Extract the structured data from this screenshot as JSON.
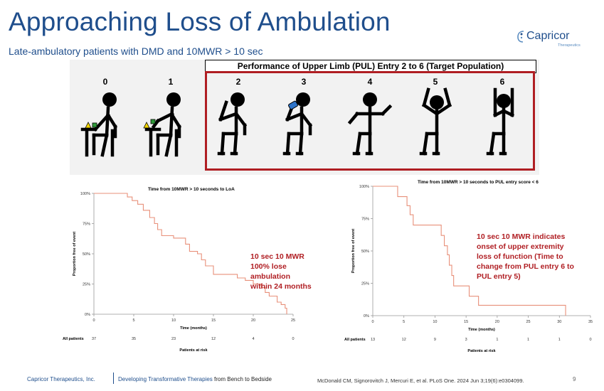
{
  "slide": {
    "title": "Approaching Loss of Ambulation",
    "subtitle": "Late-ambulatory patients with DMD  and 10MWR > 10 sec",
    "logo": {
      "name": "Capricor",
      "tagline": "Therapeutics"
    }
  },
  "pul_figure": {
    "header": "Performance of Upper Limb (PUL) Entry 2 to 6 (Target Population)",
    "entries": [
      "0",
      "1",
      "2",
      "3",
      "4",
      "5",
      "6"
    ]
  },
  "colors": {
    "accent": "#1f4e8c",
    "highlight": "#b01e23",
    "curve": "#e8907a"
  },
  "chart_data": [
    {
      "type": "line",
      "title": "Time from 10MWR > 10 seconds to LoA",
      "xlabel": "Time (months)",
      "ylabel": "Proportion free of event",
      "xlim": [
        0,
        25
      ],
      "ylim": [
        0,
        100
      ],
      "x_ticks": [
        "0",
        "5",
        "10",
        "15",
        "20",
        "25"
      ],
      "y_ticks": [
        "0%",
        "25%",
        "50%",
        "75%",
        "100%"
      ],
      "series": [
        {
          "name": "All patients",
          "step_points": [
            [
              0,
              100
            ],
            [
              2,
              100
            ],
            [
              4.2,
              97
            ],
            [
              4.8,
              94
            ],
            [
              5.5,
              91
            ],
            [
              6.2,
              86
            ],
            [
              7,
              80
            ],
            [
              7.6,
              75
            ],
            [
              8,
              70
            ],
            [
              8.5,
              65
            ],
            [
              10,
              63
            ],
            [
              11.5,
              58
            ],
            [
              12,
              52
            ],
            [
              13,
              50
            ],
            [
              13.5,
              45
            ],
            [
              14,
              40
            ],
            [
              15,
              33
            ],
            [
              17,
              33
            ],
            [
              18,
              30
            ],
            [
              19,
              28
            ],
            [
              20,
              25
            ],
            [
              21,
              22
            ],
            [
              21.5,
              18
            ],
            [
              22,
              15
            ],
            [
              23,
              10
            ],
            [
              23.5,
              8
            ],
            [
              24,
              5
            ],
            [
              24.2,
              0
            ]
          ]
        }
      ],
      "risk_table": {
        "label": "All patients",
        "values": [
          "37",
          "35",
          "23",
          "12",
          "4",
          "0"
        ],
        "caption": "Patients at risk"
      },
      "annotation": "10 sec 10 MWR\n100% lose\nambulation\nwithin 24 months"
    },
    {
      "type": "line",
      "title": "Time from 10MWR > 10 seconds to PUL entry score < 6",
      "xlabel": "Time (months)",
      "ylabel": "Proportion free of event",
      "xlim": [
        0,
        35
      ],
      "ylim": [
        0,
        100
      ],
      "x_ticks": [
        "0",
        "5",
        "10",
        "15",
        "20",
        "25",
        "30",
        "35"
      ],
      "y_ticks": [
        "0%",
        "25%",
        "50%",
        "75%",
        "100%"
      ],
      "series": [
        {
          "name": "All patients",
          "step_points": [
            [
              0,
              100
            ],
            [
              4,
              100
            ],
            [
              4,
              92
            ],
            [
              5.5,
              92
            ],
            [
              5.5,
              85
            ],
            [
              6,
              85
            ],
            [
              6,
              78
            ],
            [
              6.5,
              78
            ],
            [
              6.5,
              70
            ],
            [
              11,
              70
            ],
            [
              11,
              62
            ],
            [
              11.5,
              62
            ],
            [
              11.5,
              54
            ],
            [
              12,
              54
            ],
            [
              12,
              47
            ],
            [
              12.3,
              47
            ],
            [
              12.3,
              39
            ],
            [
              12.7,
              39
            ],
            [
              12.7,
              31
            ],
            [
              13,
              31
            ],
            [
              13,
              23
            ],
            [
              15.5,
              23
            ],
            [
              15.5,
              15
            ],
            [
              17,
              15
            ],
            [
              17,
              8
            ],
            [
              31,
              8
            ],
            [
              31,
              0
            ]
          ]
        }
      ],
      "risk_table": {
        "label": "All patients",
        "values": [
          "13",
          "12",
          "9",
          "3",
          "1",
          "1",
          "1",
          "0"
        ],
        "caption": "Patients at risk"
      },
      "annotation": "10 sec 10 MWR indicates\nonset of upper extremity\nloss of function (Time to\nchange from  PUL entry 6 to\nPUL entry 5)"
    }
  ],
  "footer": {
    "company": "Capricor Therapeutics, Inc.",
    "tagline_blue": "Developing Transformative Therapies",
    "tagline_dark": " from Bench to Bedside",
    "citation": "McDonald CM, Signorovitch J, Mercuri E, et al. PLoS One. 2024 Jun 3;19(6):e0304099.",
    "page": "9"
  }
}
